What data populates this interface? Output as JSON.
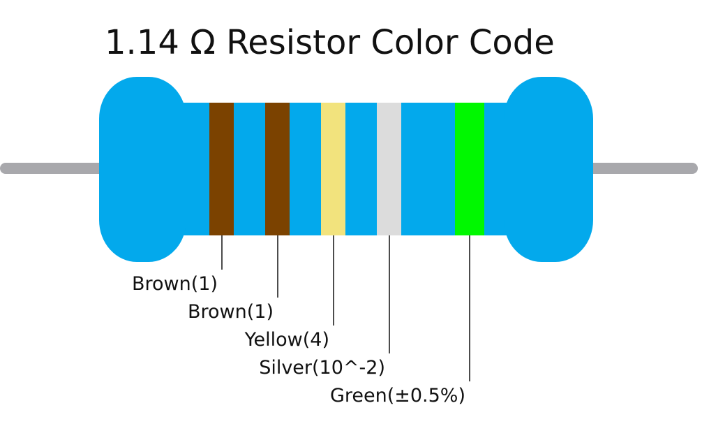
{
  "title": "1.14 Ω Resistor Color Code",
  "colors": {
    "body": "#03A9EC",
    "lead": "#A8A8AC",
    "leader_line": "#111111",
    "label_text": "#111111"
  },
  "bands": [
    {
      "name": "band-1",
      "color": "#7B4200",
      "label": "Brown(1)"
    },
    {
      "name": "band-2",
      "color": "#7B4200",
      "label": "Brown(1)"
    },
    {
      "name": "band-3",
      "color": "#F2E37D",
      "label": "Yellow(4)"
    },
    {
      "name": "multiplier-band",
      "color": "#DCDCDC",
      "label": "Silver(10^-2)"
    },
    {
      "name": "tolerance-band",
      "color": "#00F800",
      "label": "Green(±0.5%)"
    }
  ]
}
